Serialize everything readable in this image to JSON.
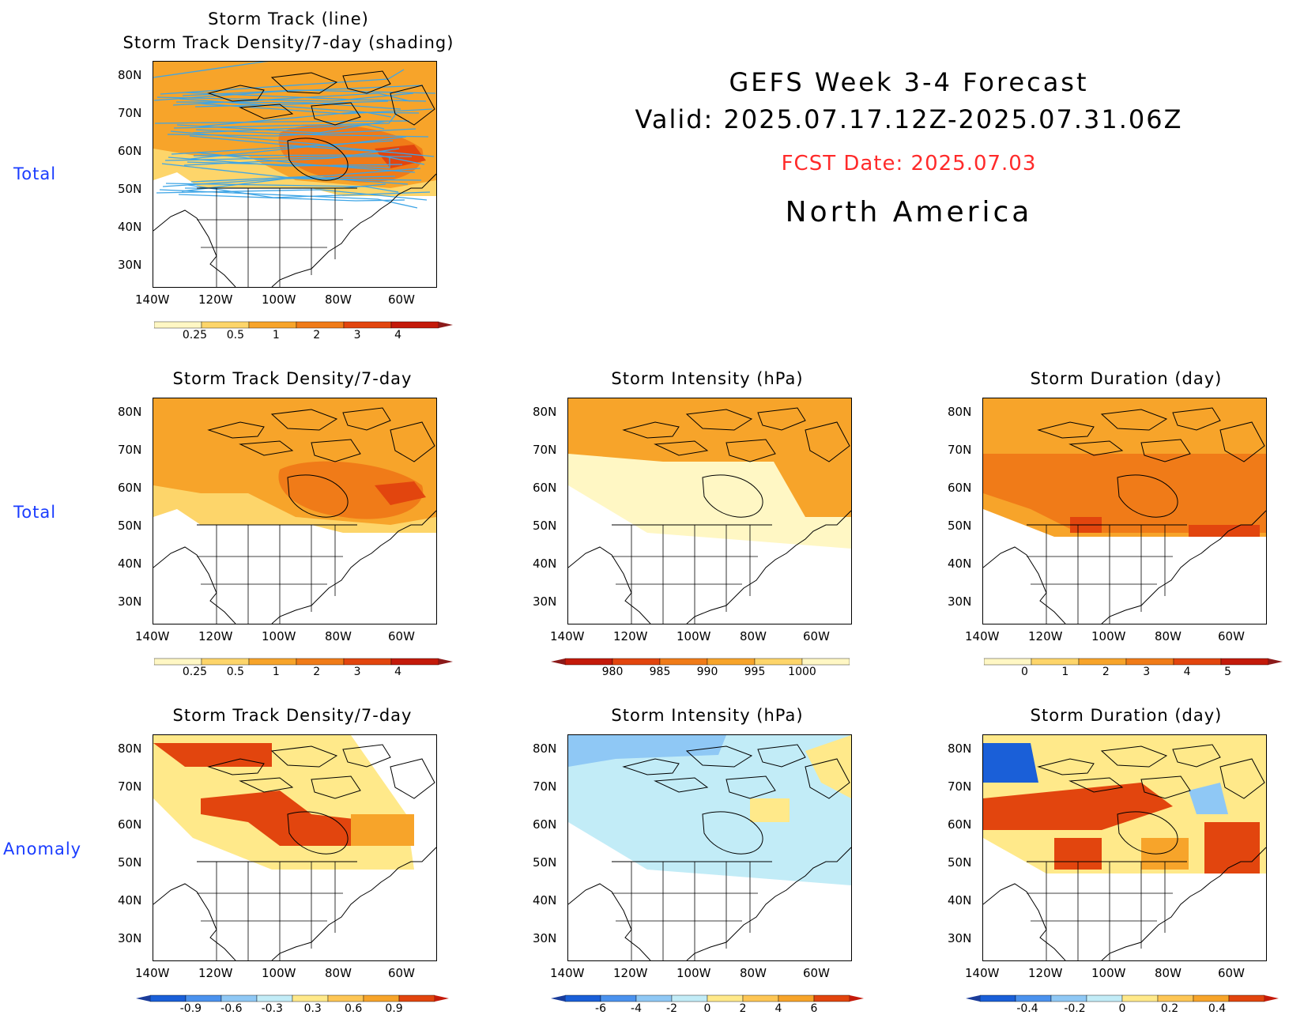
{
  "header": {
    "line1": "GEFS Week 3-4 Forecast",
    "line2": "Valid: 2025.07.17.12Z-2025.07.31.06Z",
    "fcst_date": "FCST Date: 2025.07.03",
    "region": "North America"
  },
  "row_labels": {
    "row1": "Total",
    "row2": "Total",
    "row3": "Anomaly"
  },
  "axes": {
    "lat_ticks": [
      "80N",
      "70N",
      "60N",
      "50N",
      "40N",
      "30N"
    ],
    "lon_ticks": [
      "140W",
      "120W",
      "100W",
      "80W",
      "60W"
    ]
  },
  "colors": {
    "row_label": "#1a3cff",
    "fcst_date": "#ff2a2a",
    "track_line": "#3ea5e6",
    "seq_warm": [
      "#fff7c4",
      "#fdd56a",
      "#f7a42a",
      "#f07b18",
      "#e2450e",
      "#c41a0a"
    ],
    "div_cool": [
      "#1a5fd8",
      "#4b92ee",
      "#8fc8f5",
      "#c2ecf7"
    ],
    "div_warm": [
      "#ffe98a",
      "#fdc655",
      "#f7a42a",
      "#e2450e"
    ]
  },
  "panels": {
    "top": {
      "title1": "Storm Track (line)",
      "title2": "Storm Track Density/7-day (shading)",
      "colorbar": {
        "labels": [
          "0.25",
          "0.5",
          "1",
          "2",
          "3",
          "4"
        ]
      }
    },
    "r2c1": {
      "title": "Storm Track Density/7-day",
      "colorbar": {
        "labels": [
          "0.25",
          "0.5",
          "1",
          "2",
          "3",
          "4"
        ]
      }
    },
    "r2c2": {
      "title": "Storm Intensity (hPa)",
      "colorbar": {
        "labels": [
          "980",
          "985",
          "990",
          "995",
          "1000"
        ]
      }
    },
    "r2c3": {
      "title": "Storm Duration (day)",
      "colorbar": {
        "labels": [
          "0",
          "1",
          "2",
          "3",
          "4",
          "5"
        ]
      }
    },
    "r3c1": {
      "title": "Storm Track Density/7-day",
      "colorbar": {
        "labels": [
          "-0.9",
          "-0.6",
          "-0.3",
          "0.3",
          "0.6",
          "0.9"
        ]
      }
    },
    "r3c2": {
      "title": "Storm Intensity (hPa)",
      "colorbar": {
        "labels": [
          "-6",
          "-4",
          "-2",
          "0",
          "2",
          "4",
          "6"
        ]
      }
    },
    "r3c3": {
      "title": "Storm Duration (day)",
      "colorbar": {
        "labels": [
          "-0.4",
          "-0.2",
          "0",
          "0.2",
          "0.4"
        ]
      }
    }
  }
}
